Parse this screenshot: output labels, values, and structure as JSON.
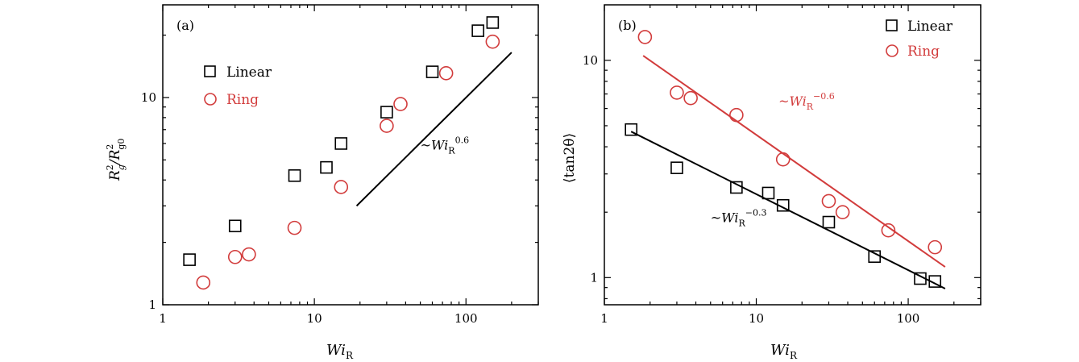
{
  "colors": {
    "linear": "#000000",
    "ring": "#d23c3c",
    "axis": "#000000"
  },
  "chart_data": [
    {
      "panel_label": "(a)",
      "type": "scatter",
      "scale": "log-log",
      "xlabel": {
        "main": "Wi",
        "sub": "R"
      },
      "ylabel": {
        "main": "R",
        "sup1": "2",
        "sub1": "g",
        "slash": "/R",
        "sup2": "2",
        "sub2": "g0"
      },
      "xlim": [
        1,
        300
      ],
      "ylim": [
        1,
        28
      ],
      "xticks": [
        {
          "value": 1,
          "label": "1"
        },
        {
          "value": 10,
          "label": "10"
        },
        {
          "value": 100,
          "label": "100"
        }
      ],
      "yticks": [
        {
          "value": 1,
          "label": "1"
        },
        {
          "value": 10,
          "label": "10"
        }
      ],
      "legend_position": "upper-left",
      "series": [
        {
          "name": "Linear",
          "marker": "square",
          "color_key": "linear",
          "x": [
            1.5,
            3.0,
            7.4,
            12,
            15,
            30,
            60,
            120,
            150
          ],
          "y": [
            1.65,
            2.4,
            4.2,
            4.6,
            6.0,
            8.5,
            13.3,
            21.0,
            23.0
          ]
        },
        {
          "name": "Ring",
          "marker": "circle",
          "color_key": "ring",
          "x": [
            1.85,
            3.0,
            3.7,
            7.4,
            15,
            30,
            37,
            74,
            150
          ],
          "y": [
            1.28,
            1.7,
            1.75,
            2.35,
            3.7,
            7.3,
            9.3,
            13.1,
            18.6
          ]
        }
      ],
      "fit_lines": [
        {
          "x": [
            19,
            200
          ],
          "y": [
            3.0,
            16.5
          ],
          "color_key": "linear"
        }
      ],
      "annotations": [
        {
          "prefix": "~",
          "base": "Wi",
          "sub": "R",
          "sup": "0.6",
          "color_key": "linear",
          "x": 50,
          "y": 5.6
        }
      ]
    },
    {
      "panel_label": "(b)",
      "type": "scatter",
      "scale": "log-log",
      "xlabel": {
        "main": "Wi",
        "sub": "R"
      },
      "ylabel": {
        "main": "⟨tan2θ⟩"
      },
      "xlim": [
        1,
        300
      ],
      "ylim": [
        0.75,
        18
      ],
      "xticks": [
        {
          "value": 1,
          "label": "1"
        },
        {
          "value": 10,
          "label": "10"
        },
        {
          "value": 100,
          "label": "100"
        }
      ],
      "yticks": [
        {
          "value": 1,
          "label": "1"
        },
        {
          "value": 10,
          "label": "10"
        }
      ],
      "legend_position": "upper-right",
      "series": [
        {
          "name": "Linear",
          "marker": "square",
          "color_key": "linear",
          "x": [
            1.5,
            3.0,
            7.4,
            12,
            15,
            30,
            60,
            120,
            150
          ],
          "y": [
            4.8,
            3.2,
            2.6,
            2.45,
            2.15,
            1.8,
            1.25,
            0.99,
            0.96
          ]
        },
        {
          "name": "Ring",
          "marker": "circle",
          "color_key": "ring",
          "x": [
            1.85,
            3.0,
            3.7,
            7.4,
            15,
            30,
            37,
            74,
            150
          ],
          "y": [
            12.8,
            7.1,
            6.7,
            5.6,
            3.5,
            2.25,
            2.0,
            1.65,
            1.38
          ]
        }
      ],
      "fit_lines": [
        {
          "x": [
            1.5,
            175
          ],
          "y": [
            4.7,
            0.89
          ],
          "color_key": "linear"
        },
        {
          "x": [
            1.8,
            175
          ],
          "y": [
            10.5,
            1.12
          ],
          "color_key": "ring"
        }
      ],
      "annotations": [
        {
          "prefix": "~",
          "base": "Wi",
          "sub": "R",
          "sup": "−0.6",
          "color_key": "ring",
          "x": 14,
          "y": 6.2
        },
        {
          "prefix": "~",
          "base": "Wi",
          "sub": "R",
          "sup": "−0.3",
          "color_key": "linear",
          "x": 5,
          "y": 1.8
        }
      ]
    }
  ]
}
